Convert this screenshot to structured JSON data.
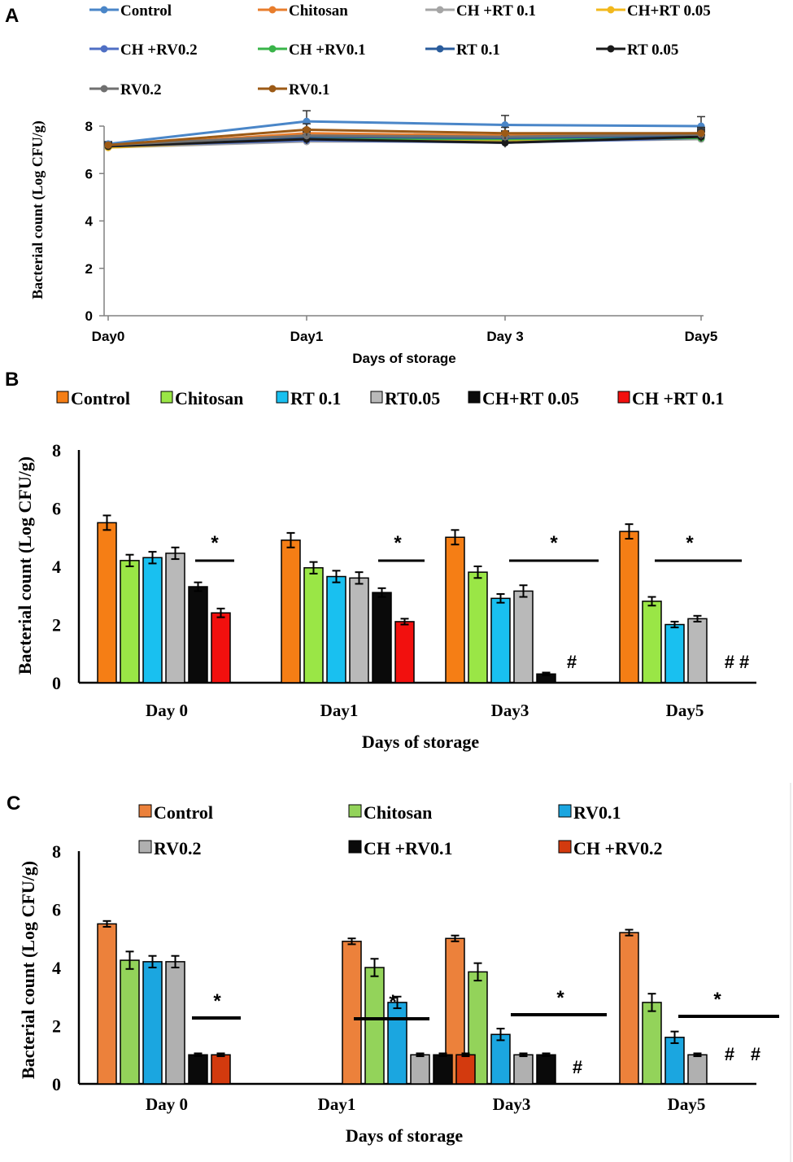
{
  "chart_data": [
    {
      "panel": "A",
      "type": "line",
      "categories": [
        "Day0",
        "Day1",
        "Day 3",
        "Day5"
      ],
      "xlabel": "Days of storage",
      "ylabel": "Bacterial count (Log CFU/g)",
      "ylim": [
        0,
        8
      ],
      "yticks": [
        "0",
        "2",
        "4",
        "6",
        "8"
      ],
      "series": [
        {
          "name": "Control",
          "color": "#4a86c8",
          "values": [
            7.25,
            8.2,
            8.05,
            8.0
          ],
          "err": [
            0.1,
            0.45,
            0.4,
            0.4
          ]
        },
        {
          "name": "Chitosan",
          "color": "#e87d2c",
          "values": [
            7.15,
            7.7,
            7.6,
            7.7
          ],
          "err": [
            0.1,
            0.2,
            0.2,
            0.2
          ]
        },
        {
          "name": "CH +RT 0.1",
          "color": "#a5a5a5",
          "values": [
            7.1,
            7.35,
            7.35,
            7.45
          ],
          "err": [
            0.1,
            0.15,
            0.15,
            0.15
          ]
        },
        {
          "name": "CH+RT 0.05",
          "color": "#f2b81c",
          "values": [
            7.1,
            7.45,
            7.4,
            7.5
          ],
          "err": [
            0.1,
            0.15,
            0.15,
            0.15
          ]
        },
        {
          "name": "CH +RV0.2",
          "color": "#4f6fc4",
          "values": [
            7.15,
            7.4,
            7.3,
            7.5
          ],
          "err": [
            0.1,
            0.15,
            0.15,
            0.15
          ]
        },
        {
          "name": "CH +RV0.1",
          "color": "#39b449",
          "values": [
            7.15,
            7.5,
            7.45,
            7.5
          ],
          "err": [
            0.1,
            0.15,
            0.15,
            0.15
          ]
        },
        {
          "name": "RT 0.1",
          "color": "#2a5c9c",
          "values": [
            7.2,
            7.55,
            7.5,
            7.6
          ],
          "err": [
            0.1,
            0.2,
            0.2,
            0.2
          ]
        },
        {
          "name": "RT 0.05",
          "color": "#1a1a1a",
          "values": [
            7.15,
            7.45,
            7.3,
            7.55
          ],
          "err": [
            0.1,
            0.2,
            0.2,
            0.2
          ]
        },
        {
          "name": "RV0.2",
          "color": "#707070",
          "values": [
            7.2,
            7.6,
            7.55,
            7.65
          ],
          "err": [
            0.1,
            0.2,
            0.2,
            0.2
          ]
        },
        {
          "name": "RV0.1",
          "color": "#9c5a16",
          "values": [
            7.2,
            7.85,
            7.7,
            7.7
          ],
          "err": [
            0.1,
            0.25,
            0.25,
            0.25
          ]
        }
      ]
    },
    {
      "panel": "B",
      "type": "bar",
      "categories": [
        "Day 0",
        "Day1",
        "Day3",
        "Day5"
      ],
      "xlabel": "Days of storage",
      "ylabel": "Bacterial count (Log CFU/g)",
      "ylim": [
        0,
        8
      ],
      "yticks": [
        "0",
        "2",
        "4",
        "6",
        "8"
      ],
      "series": [
        {
          "name": "Control",
          "color": "#f57e15",
          "values": [
            5.5,
            4.9,
            5.0,
            5.2
          ],
          "err": [
            0.25,
            0.25,
            0.25,
            0.25
          ]
        },
        {
          "name": "Chitosan",
          "color": "#9ae646",
          "values": [
            4.2,
            3.95,
            3.8,
            2.8
          ],
          "err": [
            0.2,
            0.2,
            0.2,
            0.15
          ]
        },
        {
          "name": "RT 0.1",
          "color": "#19c0f0",
          "values": [
            4.3,
            3.65,
            2.9,
            2.0
          ],
          "err": [
            0.2,
            0.2,
            0.15,
            0.1
          ]
        },
        {
          "name": "RT0.05",
          "color": "#b9b9b9",
          "values": [
            4.45,
            3.6,
            3.15,
            2.2
          ],
          "err": [
            0.2,
            0.2,
            0.2,
            0.1
          ]
        },
        {
          "name": "CH+RT 0.05",
          "color": "#0a0a0a",
          "values": [
            3.3,
            3.1,
            0.3,
            null
          ],
          "err": [
            0.15,
            0.15,
            0.05,
            null
          ]
        },
        {
          "name": "CH +RT 0.1",
          "color": "#f2100e",
          "values": [
            2.4,
            2.1,
            null,
            null
          ],
          "err": [
            0.15,
            0.1,
            null,
            null
          ]
        }
      ],
      "annotations": {
        "star": "*",
        "hash": "#",
        "double_hash": "# #"
      }
    },
    {
      "panel": "C",
      "type": "bar",
      "categories": [
        "Day 0",
        "Day1",
        "Day3",
        "Day5"
      ],
      "xlabel": "Days  of storage",
      "ylabel": "Bacterial count  (Log CFU/g)",
      "ylim": [
        0,
        8
      ],
      "yticks": [
        "0",
        "2",
        "4",
        "6",
        "8"
      ],
      "series": [
        {
          "name": "Control",
          "color": "#ec813b",
          "values": [
            5.5,
            4.9,
            5.0,
            5.2
          ],
          "err": [
            0.1,
            0.1,
            0.1,
            0.1
          ]
        },
        {
          "name": "Chitosan",
          "color": "#93d35a",
          "values": [
            4.25,
            4.0,
            3.85,
            2.8
          ],
          "err": [
            0.3,
            0.3,
            0.3,
            0.3
          ]
        },
        {
          "name": "RV0.1",
          "color": "#1ba6e0",
          "values": [
            4.2,
            2.8,
            1.7,
            1.6
          ],
          "err": [
            0.2,
            0.2,
            0.2,
            0.2
          ]
        },
        {
          "name": "RV0.2",
          "color": "#b0b0b0",
          "values": [
            4.2,
            1.0,
            1.0,
            1.0
          ],
          "err": [
            0.2,
            0.05,
            0.05,
            0.05
          ]
        },
        {
          "name": "CH +RV0.1",
          "color": "#0a0a0a",
          "values": [
            1.0,
            1.0,
            1.0,
            null
          ],
          "err": [
            0.05,
            0.05,
            0.05,
            null
          ]
        },
        {
          "name": "CH +RV0.2",
          "color": "#d33a0e",
          "values": [
            1.0,
            1.0,
            null,
            null
          ],
          "err": [
            0.05,
            0.05,
            null,
            null
          ]
        }
      ],
      "annotations": {
        "star": "*",
        "hash": "#",
        "hash_a": "#",
        "hash_b": "#"
      }
    }
  ]
}
